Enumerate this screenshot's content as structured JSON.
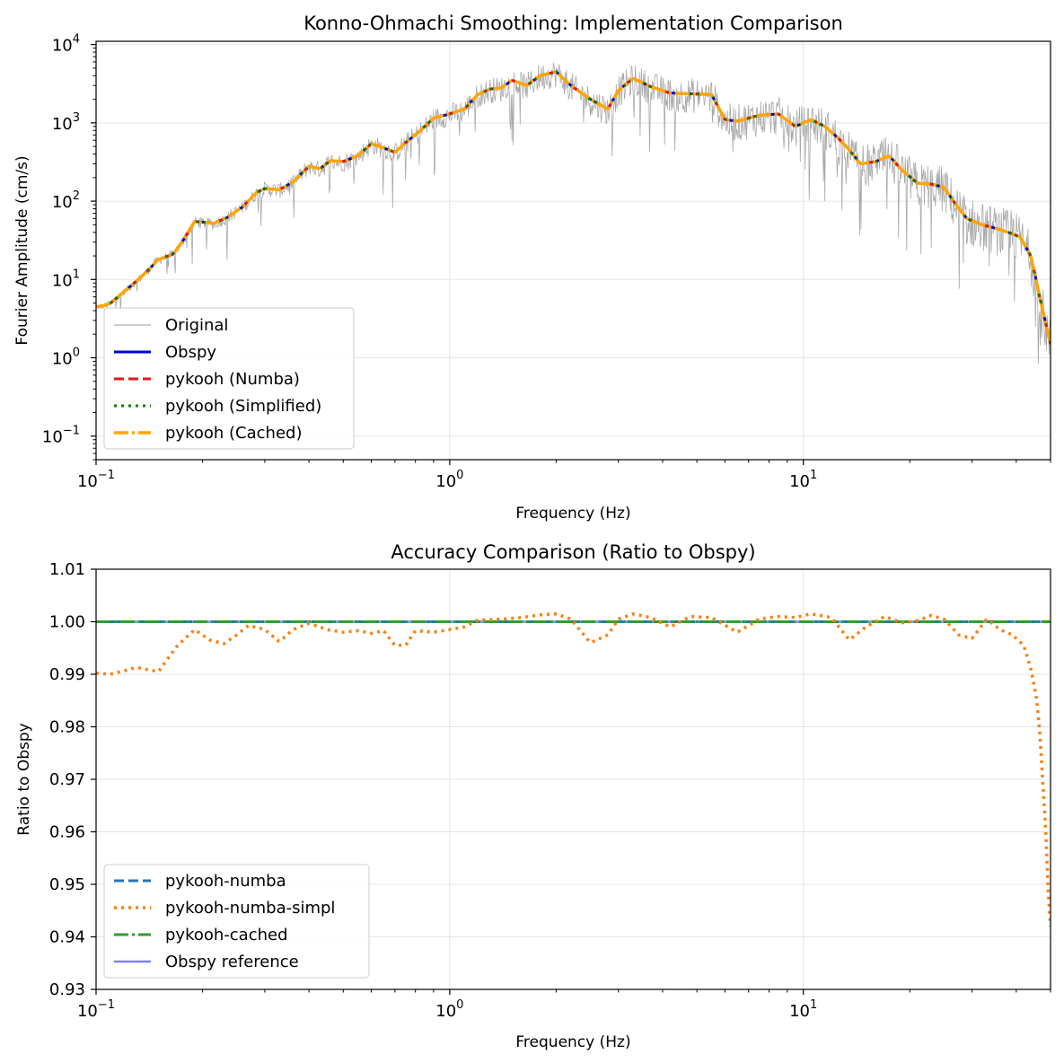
{
  "chart_data": [
    {
      "type": "line",
      "title": "Konno-Ohmachi Smoothing: Implementation Comparison",
      "xlabel": "Frequency (Hz)",
      "ylabel": "Fourier Amplitude (cm/s)",
      "xscale": "log",
      "yscale": "log",
      "xlim": [
        0.1,
        50
      ],
      "ylim": [
        0.05,
        11000
      ],
      "grid": true,
      "legend": "lower-left",
      "xticks": [
        {
          "value": 0.1,
          "base": "10",
          "exp": "−1"
        },
        {
          "value": 1,
          "base": "10",
          "exp": "0"
        },
        {
          "value": 10,
          "base": "10",
          "exp": "1"
        }
      ],
      "yticks": [
        {
          "value": 0.1,
          "base": "10",
          "exp": "−1"
        },
        {
          "value": 1,
          "base": "10",
          "exp": "0"
        },
        {
          "value": 10,
          "base": "10",
          "exp": "1"
        },
        {
          "value": 100,
          "base": "10",
          "exp": "2"
        },
        {
          "value": 1000,
          "base": "10",
          "exp": "3"
        },
        {
          "value": 10000,
          "base": "10",
          "exp": "4"
        }
      ],
      "series": [
        {
          "name": "Original",
          "color": "#999999",
          "style": "raw"
        },
        {
          "name": "Obspy",
          "color": "#0000dd",
          "style": "solid"
        },
        {
          "name": "pykooh (Numba)",
          "color": "#e8141c",
          "style": "dashed"
        },
        {
          "name": "pykooh (Simplified)",
          "color": "#008000",
          "style": "dotted"
        },
        {
          "name": "pykooh (Cached)",
          "color": "#ffa500",
          "style": "dashdot"
        }
      ],
      "smoothed": {
        "x": [
          0.1,
          0.105,
          0.11,
          0.12,
          0.13,
          0.14,
          0.15,
          0.165,
          0.175,
          0.19,
          0.2,
          0.215,
          0.235,
          0.26,
          0.285,
          0.3,
          0.33,
          0.36,
          0.4,
          0.43,
          0.46,
          0.5,
          0.55,
          0.6,
          0.65,
          0.7,
          0.75,
          0.8,
          0.85,
          0.9,
          1.0,
          1.1,
          1.2,
          1.3,
          1.4,
          1.5,
          1.65,
          1.8,
          2.0,
          2.2,
          2.5,
          2.8,
          3.0,
          3.3,
          3.7,
          4.2,
          4.8,
          5.5,
          6.0,
          6.5,
          7.5,
          8.5,
          9.5,
          10.5,
          11.5,
          12.5,
          13.5,
          14.5,
          16.0,
          17.5,
          19.0,
          21.0,
          23.0,
          25.0,
          27.0,
          29.0,
          32.0,
          35.0,
          38.0,
          41.0,
          44.0,
          47.0,
          50.0
        ],
        "y": [
          4.5,
          4.6,
          5.0,
          7.0,
          9.5,
          13.0,
          18.0,
          21.0,
          30.0,
          55.0,
          54.0,
          52.0,
          62.0,
          85.0,
          130.0,
          145.0,
          140.0,
          175.0,
          280.0,
          260.0,
          330.0,
          320.0,
          380.0,
          540.0,
          480.0,
          420.0,
          560.0,
          700.0,
          900.0,
          1150.0,
          1300.0,
          1500.0,
          2300.0,
          2700.0,
          2800.0,
          3500.0,
          3000.0,
          4000.0,
          4500.0,
          3000.0,
          2000.0,
          1500.0,
          2600.0,
          3700.0,
          2900.0,
          2400.0,
          2350.0,
          2300.0,
          1100.0,
          1050.0,
          1250.0,
          1300.0,
          900.0,
          1100.0,
          900.0,
          650.0,
          450.0,
          300.0,
          320.0,
          380.0,
          250.0,
          170.0,
          165.0,
          150.0,
          90.0,
          60.0,
          50.0,
          45.0,
          40.0,
          35.0,
          20.0,
          5.0,
          1.5
        ]
      }
    },
    {
      "type": "line",
      "title": "Accuracy Comparison (Ratio to Obspy)",
      "xlabel": "Frequency (Hz)",
      "ylabel": "Ratio to Obspy",
      "xscale": "log",
      "xlim": [
        0.1,
        50
      ],
      "ylim": [
        0.93,
        1.01
      ],
      "grid": true,
      "legend": "lower-left",
      "xticks": [
        {
          "value": 0.1,
          "base": "10",
          "exp": "−1"
        },
        {
          "value": 1,
          "base": "10",
          "exp": "0"
        },
        {
          "value": 10,
          "base": "10",
          "exp": "1"
        }
      ],
      "yticks": [
        {
          "value": 0.93,
          "label": "0.93"
        },
        {
          "value": 0.94,
          "label": "0.94"
        },
        {
          "value": 0.95,
          "label": "0.95"
        },
        {
          "value": 0.96,
          "label": "0.96"
        },
        {
          "value": 0.97,
          "label": "0.97"
        },
        {
          "value": 0.98,
          "label": "0.98"
        },
        {
          "value": 0.99,
          "label": "0.99"
        },
        {
          "value": 1.0,
          "label": "1.00"
        },
        {
          "value": 1.01,
          "label": "1.01"
        }
      ],
      "series": [
        {
          "name": "pykooh-numba",
          "color": "#1f77b4",
          "style": "dashed",
          "x": [
            0.1,
            50
          ],
          "y": [
            1.0,
            1.0
          ]
        },
        {
          "name": "pykooh-numba-simpl",
          "color": "#ff7f0e",
          "style": "dotted",
          "x": [
            0.1,
            0.11,
            0.13,
            0.15,
            0.17,
            0.19,
            0.21,
            0.23,
            0.25,
            0.27,
            0.3,
            0.33,
            0.36,
            0.4,
            0.45,
            0.5,
            0.55,
            0.6,
            0.65,
            0.7,
            0.75,
            0.8,
            0.9,
            1.0,
            1.1,
            1.2,
            1.4,
            1.6,
            1.8,
            2.0,
            2.2,
            2.5,
            2.8,
            3.0,
            3.3,
            3.7,
            4.2,
            4.8,
            5.5,
            6.5,
            7.5,
            8.5,
            9.5,
            10.5,
            12.0,
            13.5,
            15.0,
            17.0,
            19.0,
            21.0,
            23.0,
            25.0,
            27.5,
            30.0,
            33.0,
            36.0,
            39.0,
            42.0,
            44.0,
            45.5,
            46.5,
            47.5,
            48.5,
            49.3,
            50.0
          ],
          "y": [
            0.9902,
            0.99,
            0.9913,
            0.9905,
            0.9955,
            0.9985,
            0.9965,
            0.9958,
            0.9975,
            0.9993,
            0.9985,
            0.9962,
            0.9985,
            0.9997,
            0.9985,
            0.998,
            0.9983,
            0.9978,
            0.9983,
            0.9955,
            0.9955,
            0.9983,
            0.998,
            0.9985,
            0.999,
            1.0003,
            1.0005,
            1.0008,
            1.0013,
            1.0015,
            1.0005,
            0.996,
            0.9975,
            1.0005,
            1.0015,
            1.0008,
            0.999,
            1.001,
            1.0008,
            0.998,
            1.0005,
            1.001,
            1.0008,
            1.0015,
            1.0008,
            0.9965,
            0.999,
            1.001,
            0.9998,
            1.0002,
            1.0012,
            1.0005,
            0.9975,
            0.9968,
            1.0005,
            0.9985,
            0.9975,
            0.9955,
            0.991,
            0.986,
            0.98,
            0.97,
            0.96,
            0.948,
            0.942
          ]
        },
        {
          "name": "pykooh-cached",
          "color": "#2ca02c",
          "style": "dashdot",
          "x": [
            0.1,
            50
          ],
          "y": [
            1.0,
            1.0
          ]
        },
        {
          "name": "Obspy reference",
          "color": "#8080ff",
          "style": "solid",
          "x": [
            0.1,
            50
          ],
          "y": [
            1.0,
            1.0
          ]
        }
      ]
    }
  ]
}
